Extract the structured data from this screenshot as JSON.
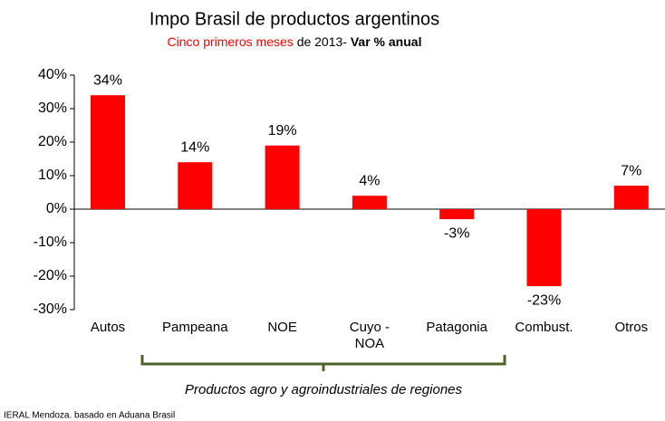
{
  "chart_data": {
    "type": "bar",
    "title": "Impo Brasil de productos argentinos",
    "subtitle_parts": [
      "Cinco primeros meses",
      "de 2013-",
      "Var % anual"
    ],
    "categories": [
      "Autos",
      "Pampeana",
      "NOE",
      "Cuyo - NOA",
      "Patagonia",
      "Combust.",
      "Otros"
    ],
    "values": [
      34,
      14,
      19,
      4,
      -3,
      -23,
      7
    ],
    "value_labels": [
      "34%",
      "14%",
      "19%",
      "4%",
      "-3%",
      "-23%",
      "7%"
    ],
    "color": "#ff0000",
    "ylim": [
      -30,
      40
    ],
    "yticks": [
      {
        "value": -30,
        "label": "-30%"
      },
      {
        "value": -20,
        "label": "-20%"
      },
      {
        "value": -10,
        "label": "-10%"
      },
      {
        "value": 0,
        "label": "0%"
      },
      {
        "value": 10,
        "label": "10%"
      },
      {
        "value": 20,
        "label": "20%"
      },
      {
        "value": 30,
        "label": "30%"
      },
      {
        "value": 40,
        "label": "40%"
      }
    ],
    "grid": false,
    "annotation": "Productos agro y agroindustriales de regiones",
    "source": "IERAL Mendoza. basado en Aduana Brasil"
  }
}
